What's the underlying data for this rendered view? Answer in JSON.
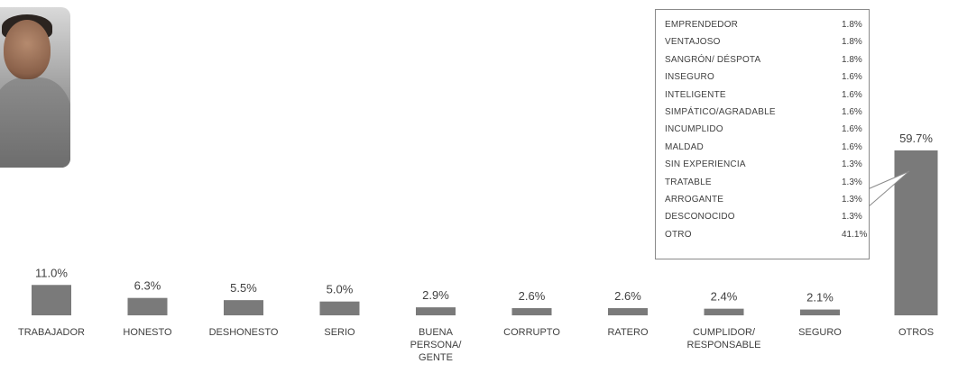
{
  "photo": {
    "caption": ""
  },
  "chart_data": {
    "type": "bar",
    "categories": [
      "TRABAJADOR",
      "HONESTO",
      "DESHONESTO",
      "SERIO",
      "BUENA PERSONA/ GENTE",
      "CORRUPTO",
      "RATERO",
      "CUMPLIDOR/ RESPONSABLE",
      "SEGURO",
      "OTROS"
    ],
    "category_lines": [
      [
        "TRABAJADOR"
      ],
      [
        "HONESTO"
      ],
      [
        "DESHONESTO"
      ],
      [
        "SERIO"
      ],
      [
        "BUENA",
        "PERSONA/",
        "GENTE"
      ],
      [
        "CORRUPTO"
      ],
      [
        "RATERO"
      ],
      [
        "CUMPLIDOR/",
        "RESPONSABLE"
      ],
      [
        "SEGURO"
      ],
      [
        "OTROS"
      ]
    ],
    "values": [
      11.0,
      6.3,
      5.5,
      5.0,
      2.9,
      2.6,
      2.6,
      2.4,
      2.1,
      59.7
    ],
    "value_labels": [
      "11.0%",
      "6.3%",
      "5.5%",
      "5.0%",
      "2.9%",
      "2.6%",
      "2.6%",
      "2.4%",
      "2.1%",
      "59.7%"
    ],
    "title": "",
    "xlabel": "",
    "ylabel": "",
    "ylim": [
      0,
      60
    ],
    "bar_color": "#7a7a7a",
    "grid": false,
    "legend": "none",
    "annotation": {
      "points_to": "OTROS",
      "items": [
        {
          "label": "EMPRENDEDOR",
          "value": "1.8%"
        },
        {
          "label": "VENTAJOSO",
          "value": "1.8%"
        },
        {
          "label": "SANGRÓN/ DÉSPOTA",
          "value": "1.8%"
        },
        {
          "label": "INSEGURO",
          "value": "1.6%"
        },
        {
          "label": "INTELIGENTE",
          "value": "1.6%"
        },
        {
          "label": "SIMPÁTICO/AGRADABLE",
          "value": "1.6%"
        },
        {
          "label": "INCUMPLIDO",
          "value": "1.6%"
        },
        {
          "label": "MALDAD",
          "value": "1.6%"
        },
        {
          "label": "SIN EXPERIENCIA",
          "value": "1.3%"
        },
        {
          "label": "TRATABLE",
          "value": "1.3%"
        },
        {
          "label": "ARROGANTE",
          "value": "1.3%"
        },
        {
          "label": "DESCONOCIDO",
          "value": "1.3%"
        },
        {
          "label": "OTRO",
          "value": "41.1%"
        }
      ]
    }
  }
}
